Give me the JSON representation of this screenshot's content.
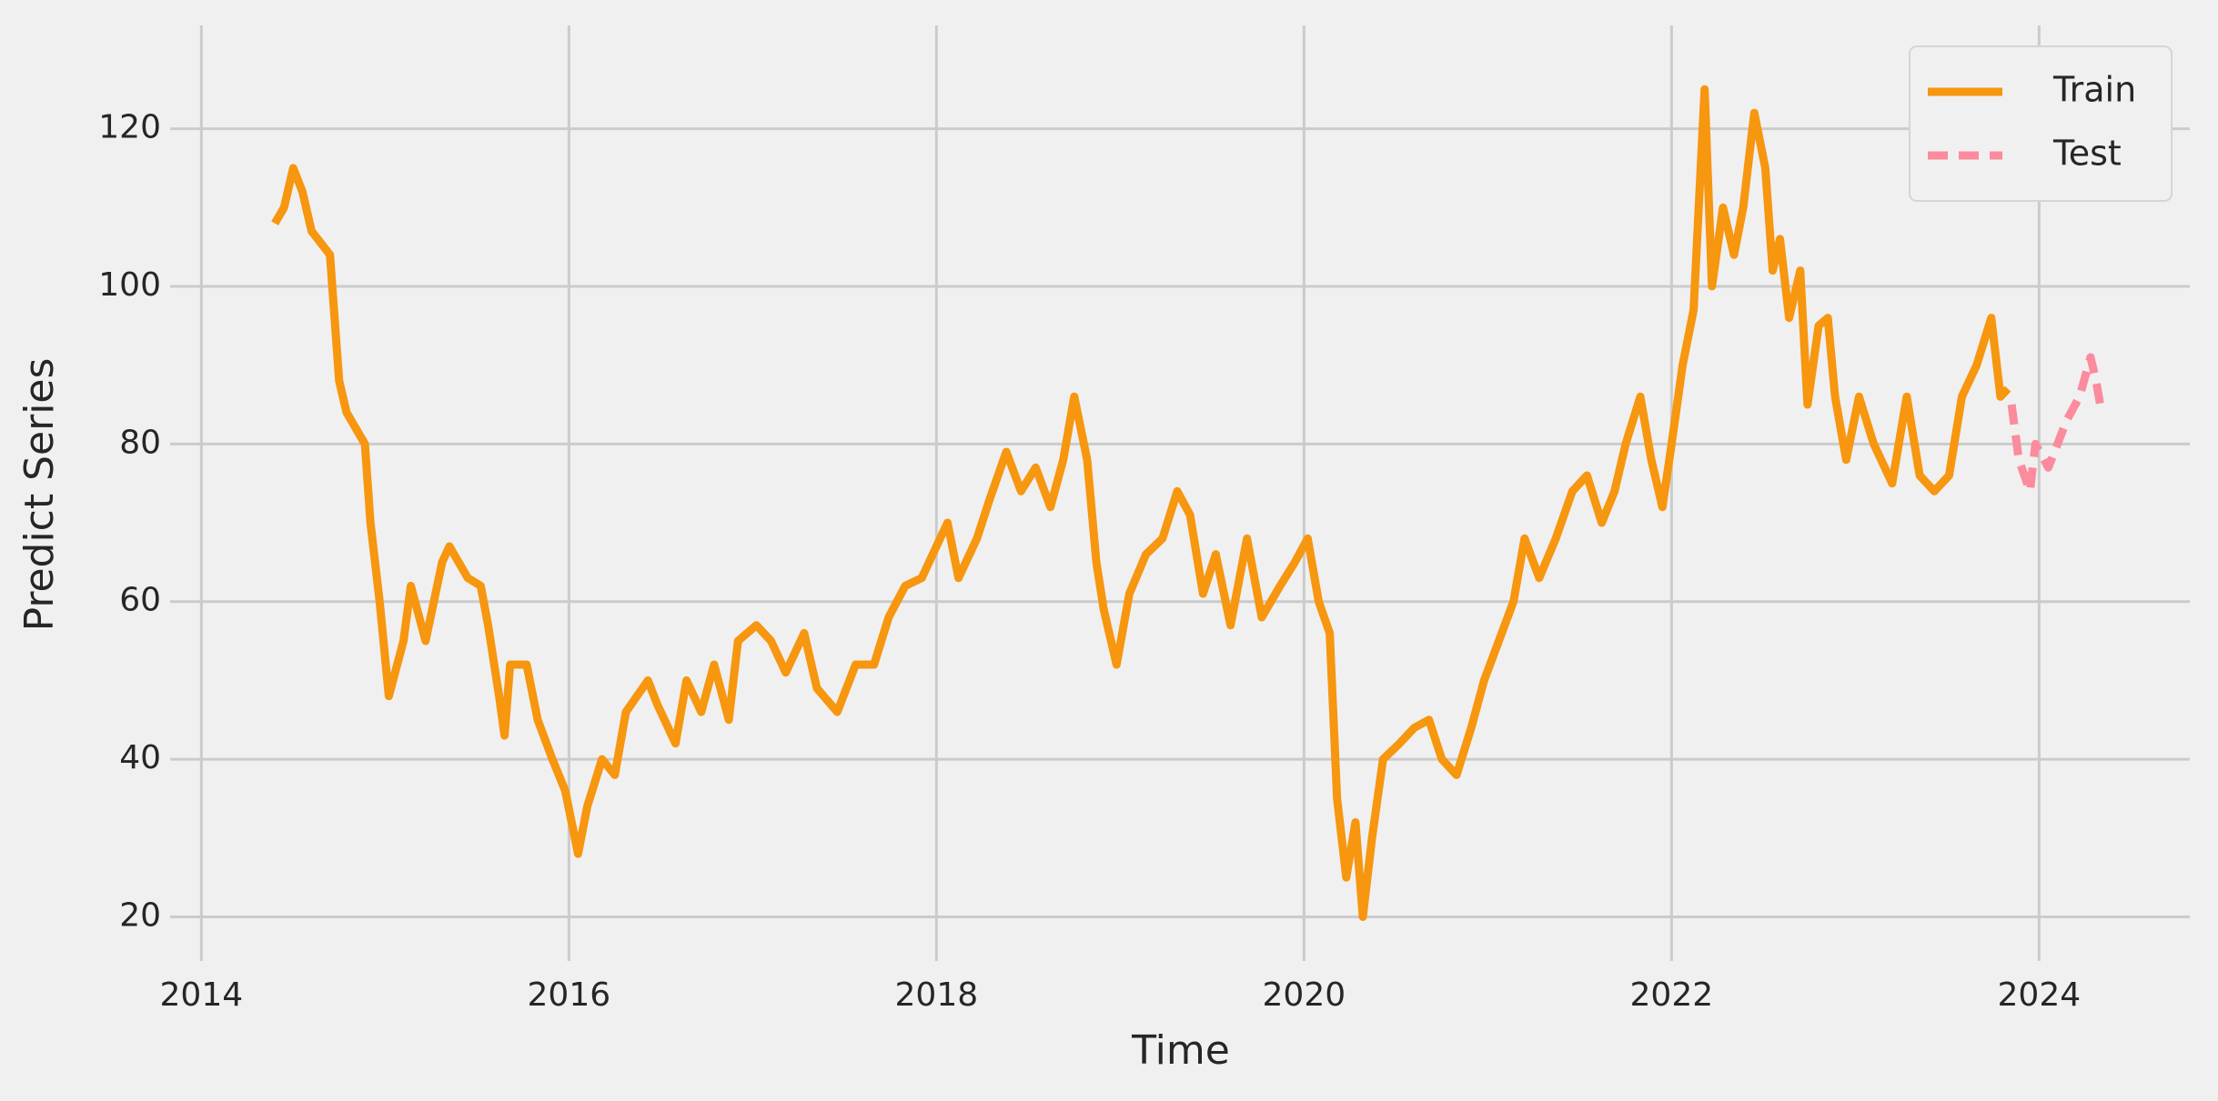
{
  "chart_data": {
    "type": "line",
    "x_label": "Time",
    "y_label": "Predict Series",
    "xlim": [
      2013.83,
      2024.82
    ],
    "xticks": [
      2014,
      2016,
      2018,
      2020,
      2022,
      2024
    ],
    "ylim": [
      14.4,
      133.1
    ],
    "yticks": [
      20,
      40,
      60,
      80,
      100,
      120
    ],
    "grid": true,
    "legend": "upper right",
    "series": [
      {
        "name": "Train",
        "color": "#f7960f",
        "dash": false,
        "x": [
          2014.4,
          2014.45,
          2014.5,
          2014.55,
          2014.6,
          2014.7,
          2014.75,
          2014.79,
          2014.89,
          2014.92,
          2014.97,
          2015.02,
          2015.1,
          2015.14,
          2015.22,
          2015.31,
          2015.35,
          2015.45,
          2015.52,
          2015.56,
          2015.62,
          2015.65,
          2015.68,
          2015.77,
          2015.83,
          2015.91,
          2015.98,
          2016.05,
          2016.1,
          2016.18,
          2016.25,
          2016.31,
          2016.43,
          2016.48,
          2016.58,
          2016.64,
          2016.72,
          2016.79,
          2016.87,
          2016.92,
          2017.02,
          2017.1,
          2017.18,
          2017.28,
          2017.35,
          2017.46,
          2017.56,
          2017.66,
          2017.74,
          2017.83,
          2017.92,
          2018.0,
          2018.06,
          2018.12,
          2018.22,
          2018.29,
          2018.38,
          2018.46,
          2018.54,
          2018.62,
          2018.69,
          2018.75,
          2018.82,
          2018.87,
          2018.91,
          2018.98,
          2019.05,
          2019.14,
          2019.23,
          2019.31,
          2019.38,
          2019.45,
          2019.52,
          2019.6,
          2019.69,
          2019.77,
          2019.87,
          2019.95,
          2020.02,
          2020.08,
          2020.14,
          2020.18,
          2020.23,
          2020.28,
          2020.32,
          2020.37,
          2020.43,
          2020.52,
          2020.6,
          2020.68,
          2020.75,
          2020.83,
          2020.91,
          2020.98,
          2021.06,
          2021.14,
          2021.2,
          2021.28,
          2021.37,
          2021.46,
          2021.54,
          2021.62,
          2021.69,
          2021.75,
          2021.83,
          2021.89,
          2021.95,
          2022.0,
          2022.06,
          2022.12,
          2022.18,
          2022.22,
          2022.28,
          2022.34,
          2022.39,
          2022.45,
          2022.51,
          2022.55,
          2022.59,
          2022.64,
          2022.7,
          2022.74,
          2022.8,
          2022.85,
          2022.89,
          2022.95,
          2023.02,
          2023.1,
          2023.2,
          2023.28,
          2023.35,
          2023.43,
          2023.51,
          2023.58,
          2023.66,
          2023.74,
          2023.79,
          2023.83
        ],
        "values": [
          108,
          110,
          115,
          112,
          107,
          104,
          88,
          84,
          80,
          70,
          60,
          48,
          55,
          62,
          55,
          65,
          67,
          63,
          62,
          57,
          48,
          43,
          52,
          52,
          45,
          40,
          36,
          28,
          34,
          40,
          38,
          46,
          50,
          47,
          42,
          50,
          46,
          52,
          45,
          55,
          57,
          55,
          51,
          56,
          49,
          46,
          52,
          52,
          58,
          62,
          63,
          67,
          70,
          63,
          68,
          73,
          79,
          74,
          77,
          72,
          78,
          86,
          78,
          65,
          59,
          52,
          61,
          66,
          68,
          74,
          71,
          61,
          66,
          57,
          68,
          58,
          62,
          65,
          68,
          60,
          56,
          35,
          25,
          32,
          20,
          30,
          40,
          42,
          44,
          45,
          40,
          38,
          44,
          50,
          55,
          60,
          68,
          63,
          68,
          74,
          76,
          70,
          74,
          80,
          86,
          78,
          72,
          80,
          90,
          97,
          125,
          100,
          110,
          104,
          110,
          122,
          115,
          102,
          106,
          96,
          102,
          85,
          95,
          96,
          86,
          78,
          86,
          80,
          75,
          86,
          76,
          74,
          76,
          86,
          90,
          96,
          86,
          87
        ]
      },
      {
        "name": "Test",
        "color": "#fb8b9d",
        "dash": true,
        "x": [
          2023.85,
          2023.89,
          2023.95,
          2023.98,
          2024.05,
          2024.1,
          2024.15,
          2024.22,
          2024.28,
          2024.31,
          2024.34
        ],
        "values": [
          85,
          78,
          74,
          80,
          77,
          80,
          83,
          86,
          91,
          88,
          84
        ]
      }
    ]
  }
}
